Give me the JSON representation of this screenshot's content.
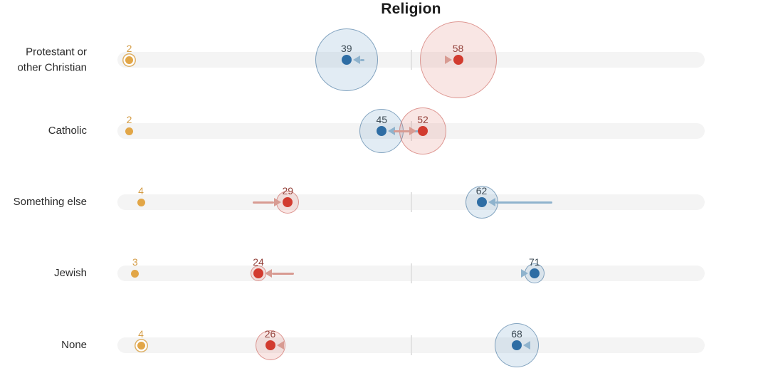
{
  "title": "Religion",
  "chart_data": {
    "type": "scatter",
    "subtype": "bubble-arrow-dot-plot",
    "title": "Religion",
    "axis": {
      "min": 0,
      "max": 100,
      "midline": 50,
      "gridlines": false
    },
    "legend": "none",
    "categories": [
      "Protestant or other Christian",
      "Catholic",
      "Something else",
      "Jewish",
      "None"
    ],
    "series": [
      {
        "name": "yellow",
        "color": "#e2a647",
        "label_color": "#d49c45",
        "values": [
          2,
          2,
          4,
          3,
          4
        ],
        "ringed": [
          true,
          false,
          false,
          false,
          true
        ]
      },
      {
        "name": "blue",
        "color": "#2e6da4",
        "label_color": "#3d4b55",
        "arrow_color": "#8fb3cd",
        "values": [
          39,
          45,
          62,
          71,
          68
        ],
        "arrow_from": [
          42,
          52,
          74,
          69,
          69
        ],
        "bubble_radius": [
          44,
          31,
          23,
          14,
          31
        ]
      },
      {
        "name": "red",
        "color": "#d23b2f",
        "label_color": "#94423b",
        "arrow_color": "#d89b92",
        "values": [
          58,
          52,
          29,
          24,
          26
        ],
        "arrow_from": [
          57,
          47,
          23,
          30,
          27
        ],
        "bubble_radius": [
          54,
          33,
          16,
          11,
          21
        ]
      }
    ],
    "colors": {
      "track": "#f4f4f4",
      "midline_tick": "#e2e2e2",
      "blue_bubble_fill": "rgba(125,170,205,0.22)",
      "blue_bubble_stroke": "rgba(52,105,150,0.55)",
      "red_bubble_fill": "rgba(225,128,120,0.20)",
      "red_bubble_stroke": "rgba(200,88,80,0.55)"
    }
  }
}
